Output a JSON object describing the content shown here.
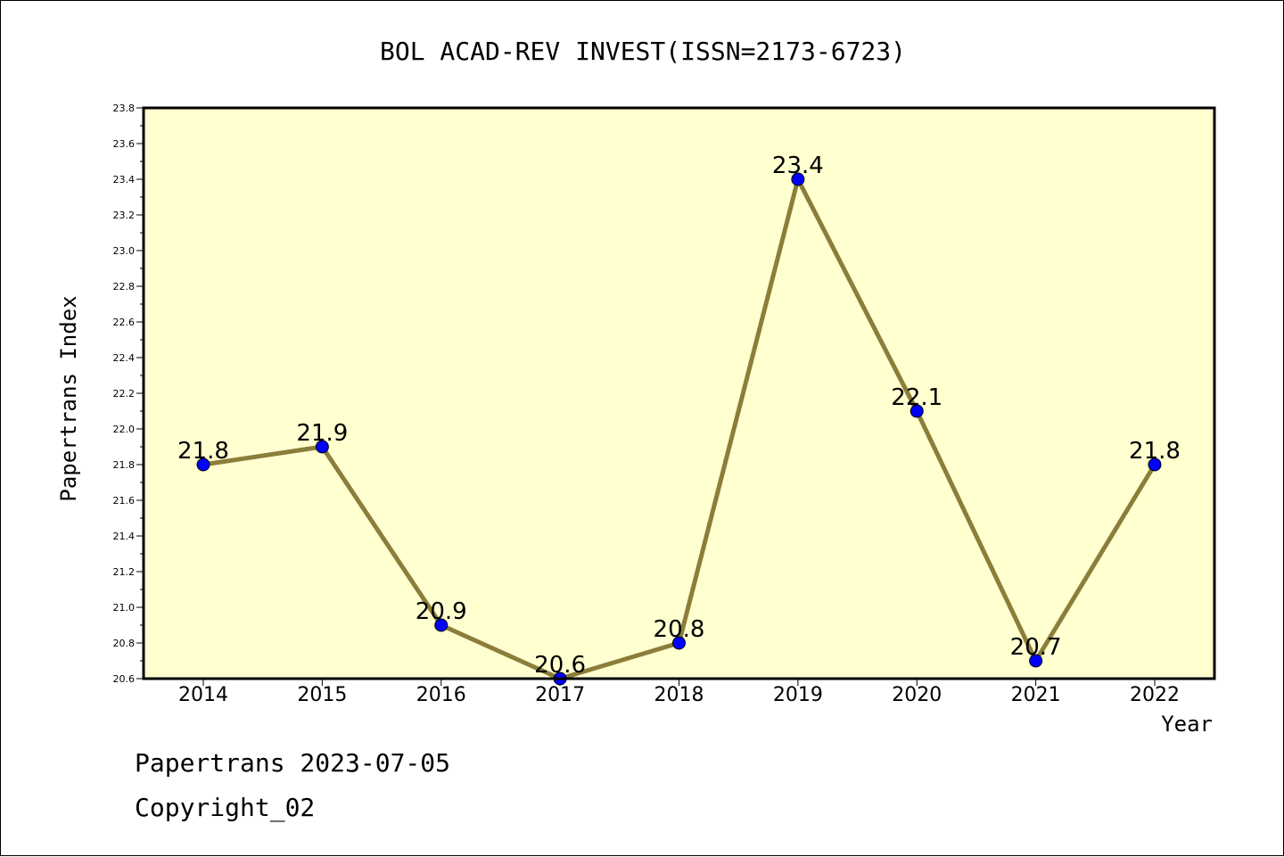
{
  "chart_data": {
    "type": "line",
    "title": "BOL ACAD-REV INVEST(ISSN=2173-6723)",
    "xlabel": "Year",
    "ylabel": "Papertrans Index",
    "categories": [
      "2014",
      "2015",
      "2016",
      "2017",
      "2018",
      "2019",
      "2020",
      "2021",
      "2022"
    ],
    "series": [
      {
        "values": [
          21.8,
          21.9,
          20.9,
          20.6,
          20.8,
          23.4,
          22.1,
          20.7,
          21.8
        ],
        "labels": [
          "21.8",
          "21.9",
          "20.9",
          "20.6",
          "20.8",
          "23.4",
          "22.1",
          "20.7",
          "21.8"
        ]
      }
    ],
    "ylim": [
      20.6,
      23.8
    ],
    "yticks": [
      "20.6",
      "20.8",
      "21.0",
      "21.2",
      "21.4",
      "21.6",
      "21.8",
      "22.0",
      "22.2",
      "22.4",
      "22.6",
      "22.8",
      "23.0",
      "23.2",
      "23.4",
      "23.6",
      "23.8"
    ],
    "grid": false,
    "legend": "none"
  },
  "footer": {
    "line1": "Papertrans 2023-07-05",
    "line2": "Copyright_02"
  },
  "colors": {
    "plot_background": "#ffffd0",
    "line": "#8b7d3a",
    "marker": "#0000ff"
  }
}
